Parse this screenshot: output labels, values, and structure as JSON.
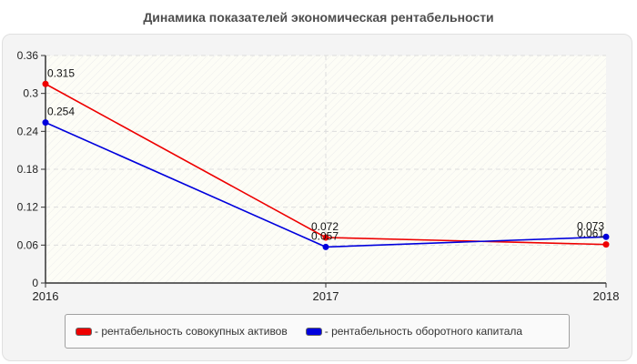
{
  "chart_data": {
    "type": "line",
    "title": "Динамика показателей экономическая рентабельности",
    "xlabel": "",
    "ylabel": "",
    "categories": [
      "2016",
      "2017",
      "2018"
    ],
    "series": [
      {
        "name": "рентабельность совокупных активов",
        "color": "#ee0000",
        "values": [
          0.315,
          0.072,
          0.061
        ],
        "labels": [
          "0.315",
          "0.072",
          "0.061"
        ]
      },
      {
        "name": "рентабельность оборотного капитала",
        "color": "#0000dd",
        "values": [
          0.254,
          0.057,
          0.073
        ],
        "labels": [
          "0.254",
          "0.057",
          "0.073"
        ]
      }
    ],
    "ylim": [
      0,
      0.36
    ],
    "yticks": [
      "0",
      "0.06",
      "0.12",
      "0.18",
      "0.24",
      "0.3",
      "0.36"
    ],
    "grid": true,
    "legend_position": "bottom"
  },
  "legend": {
    "items": [
      {
        "label": "- рентабельность совокупных активов",
        "color": "#ee0000"
      },
      {
        "label": "- рентабельность оборотного капитала",
        "color": "#0000dd"
      }
    ]
  }
}
